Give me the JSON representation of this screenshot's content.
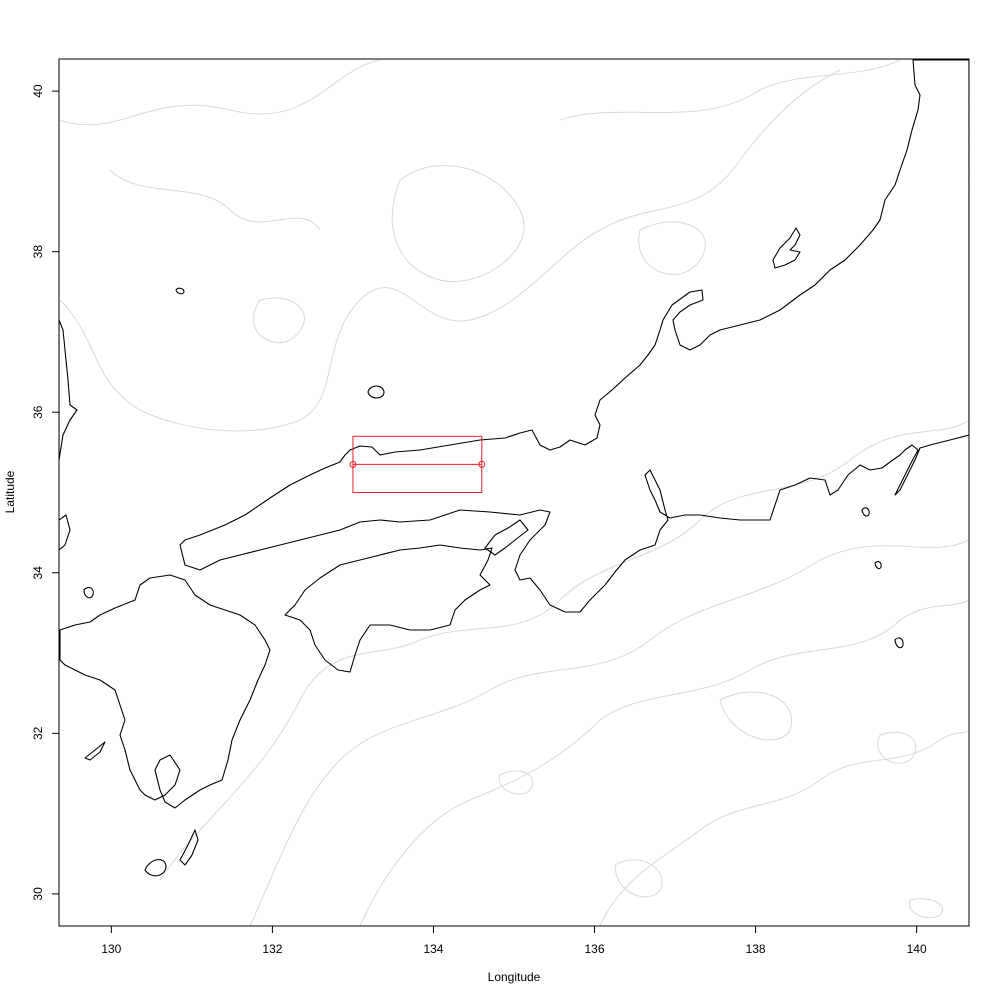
{
  "chart_data": {
    "type": "map",
    "xlabel": "Longitude",
    "ylabel": "Latitude",
    "xlim": [
      129.35,
      140.65
    ],
    "ylim": [
      29.6,
      40.4
    ],
    "x_ticks": [
      130,
      132,
      134,
      136,
      138,
      140
    ],
    "y_ticks": [
      30,
      32,
      34,
      36,
      38,
      40
    ],
    "x_tick_labels": [
      "130",
      "132",
      "134",
      "136",
      "138",
      "140"
    ],
    "y_tick_labels": [
      "30",
      "32",
      "34",
      "36",
      "38",
      "40"
    ],
    "bounding_box": {
      "lon_min": 133.0,
      "lon_max": 134.6,
      "lat_min": 35.0,
      "lat_max": 35.7
    },
    "transect": {
      "lat": 35.35,
      "lon_start": 133.0,
      "lon_end": 134.6
    },
    "colors": {
      "coastline": "#000000",
      "bathymetry_contours": "#d9d9d9",
      "selection": "#e8202a"
    }
  }
}
